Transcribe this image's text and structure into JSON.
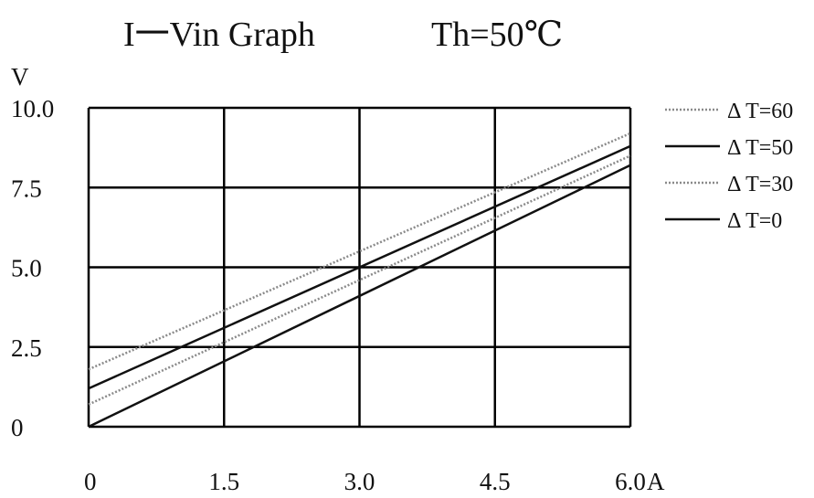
{
  "chart_data": {
    "type": "line",
    "title": "I一Vin Graph",
    "subtitle": "Th=50℃",
    "ylabel": "V",
    "xunit": "A",
    "xlim": [
      0,
      6.0
    ],
    "ylim": [
      0,
      10.0
    ],
    "x_ticks": [
      0,
      1.5,
      3.0,
      4.5,
      6.0
    ],
    "y_ticks": [
      0,
      2.5,
      5.0,
      7.5,
      10.0
    ],
    "x_tick_labels": [
      "0",
      "1.5",
      "3.0",
      "4.5",
      "6.0"
    ],
    "y_tick_labels": [
      "0",
      "2.5",
      "5.0",
      "7.5",
      "10.0"
    ],
    "grid": true,
    "legend_position": "right",
    "series": [
      {
        "name": "Δ T=60",
        "color": "#8a8a8a",
        "style": "dotted",
        "x": [
          0,
          6.0
        ],
        "y": [
          1.8,
          9.2
        ]
      },
      {
        "name": "Δ T=50",
        "color": "#111111",
        "style": "solid",
        "x": [
          0,
          6.0
        ],
        "y": [
          1.2,
          8.8
        ]
      },
      {
        "name": "Δ T=30",
        "color": "#8a8a8a",
        "style": "dotted",
        "x": [
          0,
          6.0
        ],
        "y": [
          0.7,
          8.5
        ]
      },
      {
        "name": "Δ T=0",
        "color": "#111111",
        "style": "solid",
        "x": [
          0,
          6.0
        ],
        "y": [
          0.0,
          8.2
        ]
      }
    ]
  }
}
